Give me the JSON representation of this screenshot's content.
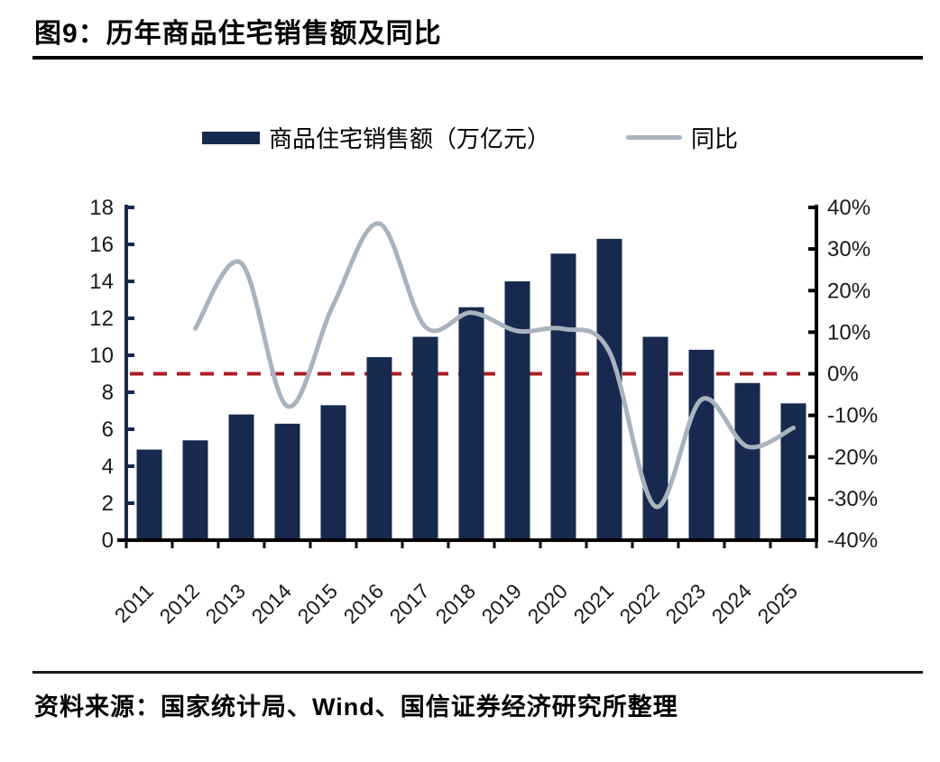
{
  "header": {
    "title": "图9：历年商品住宅销售额及同比"
  },
  "legend": [
    {
      "label": "商品住宅销售额（万亿元）",
      "swatch": "bar-swatch"
    },
    {
      "label": "同比",
      "swatch": "line-swatch"
    }
  ],
  "footer": {
    "source": "资料来源：国家统计局、Wind、国信证券经济研究所整理"
  },
  "colors": {
    "bar": "#17294E",
    "line": "#A9B3BE",
    "reference": "#A81E24",
    "axis_black": "#000000",
    "axis_navy": "#17294E",
    "text": "#1a1a1a"
  },
  "chart_data": {
    "type": "bar",
    "title": "历年商品住宅销售额及同比",
    "categories": [
      "2011",
      "2012",
      "2013",
      "2014",
      "2015",
      "2016",
      "2017",
      "2018",
      "2019",
      "2020",
      "2021",
      "2022",
      "2023",
      "2024",
      "2025"
    ],
    "series": [
      {
        "name": "商品住宅销售额（万亿元）",
        "type": "bar",
        "axis": "left",
        "values": [
          4.9,
          5.4,
          6.8,
          6.3,
          7.3,
          9.9,
          11.0,
          12.6,
          14.0,
          15.5,
          16.3,
          11.0,
          10.3,
          8.5,
          7.4
        ]
      },
      {
        "name": "同比",
        "type": "line",
        "axis": "right",
        "values": [
          null,
          10.9,
          26.6,
          -7.8,
          16.6,
          36.1,
          11.3,
          14.7,
          10.3,
          10.8,
          5.3,
          -31.9,
          -6.2,
          -17.5,
          -13.0
        ]
      }
    ],
    "left_axis": {
      "min": 0,
      "max": 18,
      "step": 2,
      "ticks": [
        "0",
        "2",
        "4",
        "6",
        "8",
        "10",
        "12",
        "14",
        "16",
        "18"
      ]
    },
    "right_axis": {
      "min": -40,
      "max": 40,
      "step": 10,
      "ticks": [
        "40%",
        "30%",
        "20%",
        "10%",
        "0%",
        "-10%",
        "-20%",
        "-30%",
        "-40%"
      ]
    },
    "reference_line": {
      "axis": "right",
      "value": 0,
      "style": "dashed"
    },
    "grid": false,
    "legend_position": "top"
  }
}
